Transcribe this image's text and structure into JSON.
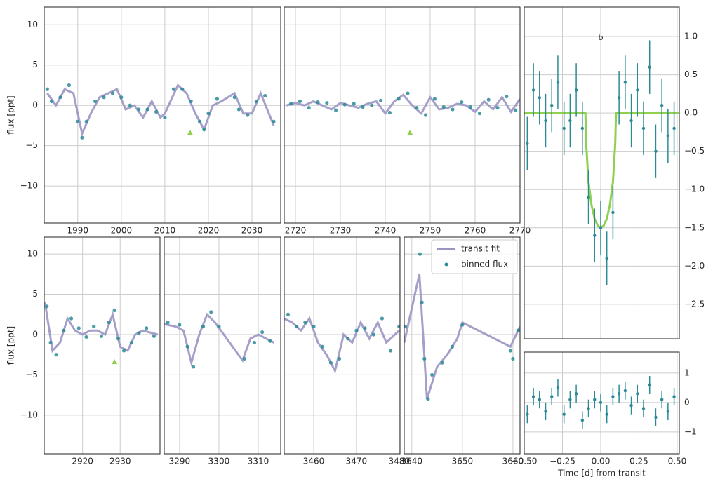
{
  "chart_data": [
    {
      "type": "line",
      "ylabel": "flux [ppt]",
      "xlim": [
        1982.3,
        2036.6
      ],
      "ylim": [
        -14.6,
        12.2
      ],
      "xticks": [
        1990,
        2000,
        2010,
        2020,
        2030
      ],
      "yticks": [
        10,
        5,
        0,
        {
          "value": -5,
          "label": "−5"
        },
        {
          "value": -10,
          "label": "−10"
        }
      ],
      "grid": true,
      "series": [
        {
          "color": "#9a96c4",
          "x": [
            1983,
            1985,
            1987,
            1989,
            1991,
            1993,
            1995,
            1997,
            1999,
            2001,
            2003,
            2005,
            2007,
            2009,
            2010,
            2013,
            2015,
            2017,
            2019,
            2021,
            2023,
            2026,
            2028,
            2030,
            2032,
            2035
          ],
          "values": [
            1.5,
            0,
            2,
            1.5,
            -3.5,
            -1,
            1,
            1.5,
            2,
            -0.5,
            0,
            -1.5,
            0.5,
            -1.5,
            -1,
            2.5,
            1.5,
            -1,
            -3,
            0,
            0.5,
            1.5,
            -1,
            -1,
            1.5,
            -2.5
          ]
        },
        {
          "color": "#2a8b97",
          "x": [
            1983,
            1984,
            1986,
            1988,
            1990,
            1991,
            1992,
            1994,
            1996,
            1998,
            2000,
            2002,
            2004,
            2006,
            2008,
            2010,
            2012,
            2014,
            2016,
            2018,
            2019,
            2020,
            2022,
            2026,
            2027,
            2029,
            2031,
            2033,
            2035
          ],
          "values": [
            2,
            0.5,
            1,
            2.5,
            -2,
            -4,
            -2,
            0.5,
            1,
            1.5,
            1,
            0,
            -0.5,
            -0.5,
            -0.8,
            -1.5,
            2,
            2,
            0.5,
            -2,
            -3,
            -1,
            0.8,
            1,
            -0.5,
            -1.2,
            0.5,
            1.2,
            -2
          ]
        }
      ],
      "transits": {
        "color": "#8fd14f",
        "x": [
          2015.8
        ],
        "values": [
          -3.4
        ]
      }
    },
    {
      "type": "line",
      "xlim": [
        2717.5,
        2770
      ],
      "ylim": [
        -14.6,
        12.2
      ],
      "xticks": [
        2720,
        2730,
        2740,
        2750,
        2760,
        2770
      ],
      "yticks": [
        10,
        5,
        0,
        -5,
        -10
      ],
      "grid": true,
      "series": [
        {
          "color": "#9a96c4",
          "x": [
            2718,
            2720,
            2722,
            2724,
            2726,
            2728,
            2730,
            2732,
            2734,
            2736,
            2738,
            2740,
            2742,
            2744,
            2746,
            2748,
            2750,
            2752,
            2754,
            2756,
            2758,
            2760,
            2762,
            2764,
            2766,
            2768,
            2770
          ],
          "values": [
            0,
            0.3,
            0,
            0.5,
            0,
            -0.5,
            0.3,
            0,
            -0.3,
            0.2,
            0.5,
            -1,
            0.5,
            1.3,
            0,
            -1,
            1,
            -0.5,
            -0.3,
            0.2,
            0,
            -0.8,
            0.5,
            -0.5,
            1,
            -0.8,
            0.8
          ]
        },
        {
          "color": "#2a8b97",
          "x": [
            2719,
            2721,
            2723,
            2725,
            2727,
            2729,
            2731,
            2733,
            2735,
            2737,
            2739,
            2741,
            2743,
            2745,
            2747,
            2749,
            2751,
            2753,
            2755,
            2757,
            2759,
            2761,
            2763,
            2765,
            2767,
            2769
          ],
          "values": [
            0.2,
            0.5,
            -0.3,
            0.4,
            0.3,
            -0.6,
            0.1,
            0.2,
            -0.2,
            0,
            0.6,
            -0.9,
            0.8,
            1.5,
            -0.3,
            -1.2,
            0.8,
            -0.2,
            -0.5,
            0.4,
            -0.2,
            -1,
            0.7,
            -0.3,
            1.1,
            -0.6
          ]
        }
      ],
      "transits": {
        "color": "#8fd14f",
        "x": [
          2745.5
        ],
        "values": [
          -3.4
        ]
      }
    },
    {
      "type": "line",
      "ylabel": "flux [ppt]",
      "xlim": [
        2909.8,
        2940.6
      ],
      "ylim": [
        -14.8,
        12.1
      ],
      "xticks": [
        2920,
        2930
      ],
      "yticks": [
        10,
        5,
        0,
        {
          "value": -5,
          "label": "−5"
        },
        {
          "value": -10,
          "label": "−10"
        }
      ],
      "grid": true,
      "series": [
        {
          "color": "#9a96c4",
          "x": [
            2910,
            2912,
            2914,
            2916,
            2918,
            2920,
            2922,
            2924,
            2926,
            2928,
            2930,
            2932,
            2934,
            2936,
            2940
          ],
          "values": [
            4,
            -2,
            -1,
            2,
            0.5,
            0,
            0.5,
            0.5,
            0,
            2.5,
            -1.5,
            -2,
            0,
            0.5,
            0
          ]
        },
        {
          "color": "#2a8b97",
          "x": [
            2910.5,
            2911.5,
            2913,
            2915,
            2917,
            2919,
            2921,
            2923,
            2925,
            2927,
            2928.5,
            2929.5,
            2931,
            2933,
            2935,
            2937,
            2939
          ],
          "values": [
            3.5,
            -1,
            -2.5,
            0.5,
            2,
            0.8,
            -0.3,
            1,
            -0.2,
            1.5,
            3,
            -0.5,
            -2,
            -1,
            0.2,
            0.8,
            -0.2
          ]
        }
      ],
      "transits": {
        "color": "#8fd14f",
        "x": [
          2928.5
        ],
        "values": [
          -3.4
        ]
      }
    },
    {
      "type": "line",
      "xlim": [
        3286.1,
        3315.7
      ],
      "ylim": [
        -14.8,
        12.1
      ],
      "xticks": [
        3290,
        3300,
        3310
      ],
      "yticks": [
        10,
        5,
        0,
        -5,
        -10
      ],
      "grid": true,
      "series": [
        {
          "color": "#9a96c4",
          "x": [
            3286,
            3289,
            3291,
            3293,
            3295,
            3297,
            3299,
            3306,
            3308,
            3310,
            3314
          ],
          "values": [
            1.3,
            1,
            0.5,
            -3.5,
            0,
            2.5,
            1.5,
            -3.2,
            -0.5,
            0,
            -1
          ]
        },
        {
          "color": "#2a8b97",
          "x": [
            3287,
            3290,
            3292,
            3293.5,
            3296,
            3298,
            3300,
            3306.5,
            3309,
            3311,
            3313
          ],
          "values": [
            1.5,
            1.2,
            -1.5,
            -4,
            1,
            2.8,
            1,
            -3,
            -1,
            0.3,
            -0.8
          ]
        }
      ]
    },
    {
      "type": "line",
      "xlim": [
        3453.1,
        3480.2
      ],
      "ylim": [
        -14.8,
        12.1
      ],
      "xticks": [
        3460,
        3470,
        3480
      ],
      "yticks": [
        10,
        5,
        0,
        -5,
        -10
      ],
      "grid": true,
      "series": [
        {
          "color": "#9a96c4",
          "x": [
            3453,
            3455,
            3457,
            3459,
            3461,
            3463,
            3465,
            3467,
            3469,
            3471,
            3473,
            3475,
            3477,
            3480
          ],
          "values": [
            2,
            1.5,
            0.5,
            2,
            -1,
            -2.5,
            -4.5,
            0,
            -1,
            1.5,
            -0.5,
            1.5,
            -1,
            0.5
          ]
        },
        {
          "color": "#2a8b97",
          "x": [
            3454,
            3456,
            3458,
            3460,
            3462,
            3464,
            3466,
            3468,
            3470,
            3472,
            3474,
            3476,
            3478,
            3480
          ],
          "values": [
            2.5,
            1,
            1.5,
            1,
            -1.5,
            -3.5,
            -3,
            -0.5,
            0.5,
            0.8,
            0,
            2,
            -2,
            1
          ]
        }
      ]
    },
    {
      "type": "line",
      "xlim": [
        3638.5,
        3661.4
      ],
      "ylim": [
        -14.8,
        12.1
      ],
      "xticks": [
        3640,
        3650,
        3660
      ],
      "yticks": [
        10,
        5,
        0,
        -5,
        -10
      ],
      "grid": true,
      "legend": "upper right",
      "series": [
        {
          "name": "transit fit",
          "color": "#9a96c4",
          "x": [
            3638.5,
            3641.5,
            3643,
            3645,
            3647,
            3649,
            3650,
            3659.5,
            3661.4
          ],
          "values": [
            -1,
            7.5,
            -8,
            -4,
            -2.5,
            -0.5,
            1.5,
            -1.5,
            1
          ]
        },
        {
          "name": "binned flux",
          "color": "#2a8b97",
          "x": [
            3638.7,
            3641.6,
            3642,
            3642.5,
            3643.2,
            3644,
            3646,
            3648,
            3650,
            3659.5,
            3660,
            3661
          ],
          "values": [
            1,
            10,
            4,
            -3,
            -8,
            -5,
            -3.5,
            -1.5,
            1.2,
            -2,
            -3,
            0.5
          ]
        }
      ]
    },
    {
      "type": "errorbar",
      "label": "b",
      "label_x": 0,
      "label_y": 0.98,
      "xlim": [
        -0.5,
        0.514
      ],
      "ylim": [
        -2.95,
        1.385
      ],
      "xticks": [
        -0.5,
        -0.25,
        0,
        0.25,
        0.5
      ],
      "yticks": [
        {
          "value": 1,
          "label": "1.0"
        },
        0.5,
        {
          "value": 0,
          "label": "0.0"
        },
        {
          "value": -0.5,
          "label": "−0.5"
        },
        {
          "value": -1,
          "label": "−1.0"
        },
        {
          "value": -1.5,
          "label": "−1.5"
        },
        {
          "value": -2,
          "label": "−2.0"
        },
        {
          "value": -2.5,
          "label": "−2.5"
        }
      ],
      "grid": true,
      "series": [
        {
          "color": "#8fd14f",
          "x": [
            -0.5,
            -0.1,
            -0.095,
            -0.08,
            -0.06,
            -0.04,
            -0.02,
            0,
            0.02,
            0.04,
            0.06,
            0.08,
            0.095,
            0.1,
            0.514
          ],
          "values": [
            0,
            0,
            -0.4,
            -0.9,
            -1.2,
            -1.38,
            -1.47,
            -1.5,
            -1.47,
            -1.38,
            -1.2,
            -0.9,
            -0.4,
            0,
            0
          ]
        },
        {
          "color": "#2a8b97",
          "x": [
            -0.48,
            -0.44,
            -0.4,
            -0.36,
            -0.32,
            -0.28,
            -0.24,
            -0.2,
            -0.16,
            -0.12,
            -0.08,
            -0.04,
            0,
            0.04,
            0.08,
            0.12,
            0.16,
            0.2,
            0.24,
            0.28,
            0.32,
            0.36,
            0.4,
            0.44,
            0.48
          ],
          "values": [
            -0.4,
            0.3,
            0.2,
            -0.1,
            0.1,
            0.4,
            -0.2,
            -0.1,
            0.3,
            -0.2,
            -1.1,
            -1.6,
            -1.5,
            -1.9,
            -1.3,
            0.2,
            0.4,
            -0.1,
            0.3,
            -0.2,
            0.6,
            -0.5,
            0.1,
            -0.3,
            -0.2
          ],
          "errors": [
            0.35,
            0.35,
            0.35,
            0.35,
            0.35,
            0.35,
            0.35,
            0.35,
            0.35,
            0.35,
            0.35,
            0.35,
            0.35,
            0.35,
            0.35,
            0.35,
            0.35,
            0.35,
            0.35,
            0.35,
            0.35,
            0.35,
            0.35,
            0.35,
            0.35
          ]
        }
      ]
    },
    {
      "type": "errorbar",
      "xlabel": "Time [d] from transit",
      "xlim": [
        -0.5,
        0.514
      ],
      "ylim": [
        -1.74,
        1.71
      ],
      "xticks": [
        {
          "value": -0.5,
          "label": "−0.50"
        },
        {
          "value": -0.25,
          "label": "−0.25"
        },
        {
          "value": 0,
          "label": "0.00"
        },
        {
          "value": 0.25,
          "label": "0.25"
        },
        {
          "value": 0.5,
          "label": "0.50"
        }
      ],
      "yticks": [
        1,
        0,
        {
          "value": -1,
          "label": "−1"
        }
      ],
      "grid": true,
      "series": [
        {
          "color": "#2a8b97",
          "x": [
            -0.48,
            -0.44,
            -0.4,
            -0.36,
            -0.32,
            -0.28,
            -0.24,
            -0.2,
            -0.16,
            -0.12,
            -0.08,
            -0.04,
            0,
            0.04,
            0.08,
            0.12,
            0.16,
            0.2,
            0.24,
            0.28,
            0.32,
            0.36,
            0.4,
            0.44,
            0.48
          ],
          "values": [
            -0.4,
            0.2,
            0.1,
            -0.3,
            0.2,
            0.5,
            -0.4,
            0.1,
            0.3,
            -0.6,
            -0.2,
            0.1,
            0,
            -0.4,
            0.2,
            0.3,
            0.4,
            -0.1,
            0.3,
            -0.2,
            0.6,
            -0.5,
            0.1,
            -0.3,
            0.2
          ],
          "errors": [
            0.3,
            0.3,
            0.3,
            0.3,
            0.3,
            0.3,
            0.3,
            0.3,
            0.3,
            0.3,
            0.3,
            0.3,
            0.3,
            0.3,
            0.3,
            0.3,
            0.3,
            0.3,
            0.3,
            0.3,
            0.3,
            0.3,
            0.3,
            0.3,
            0.3
          ]
        }
      ]
    }
  ]
}
